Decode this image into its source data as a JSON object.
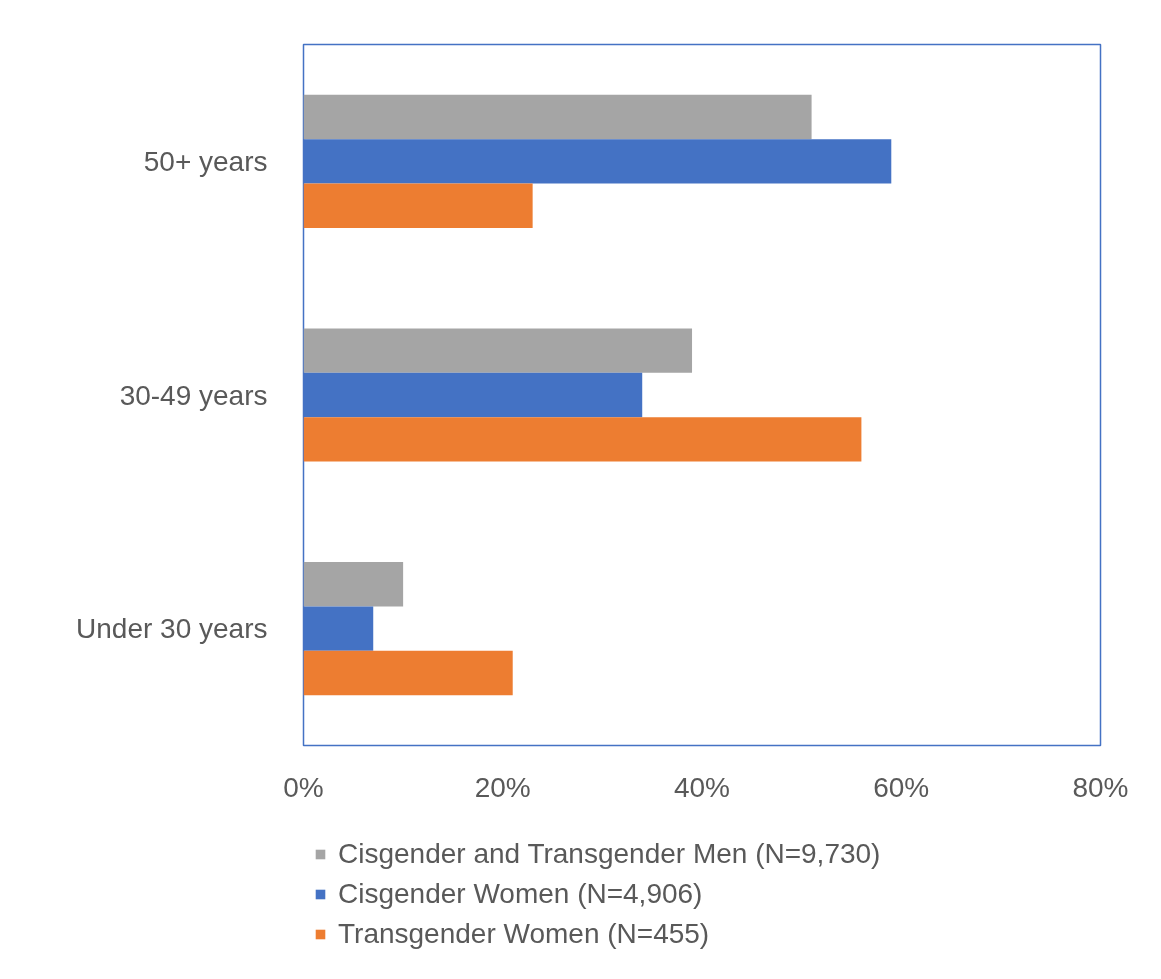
{
  "chart_data": {
    "type": "bar",
    "orientation": "horizontal",
    "categories": [
      "50+ years",
      "30-49 years",
      "Under 30 years"
    ],
    "series": [
      {
        "name": "Cisgender and Transgender Men (N=9,730)",
        "color": "#a5a5a5",
        "values": [
          51,
          39,
          10
        ]
      },
      {
        "name": "Cisgender Women (N=4,906)",
        "color": "#4472c4",
        "values": [
          59,
          34,
          7
        ]
      },
      {
        "name": "Transgender Women (N=455)",
        "color": "#ed7d31",
        "values": [
          23,
          56,
          21
        ]
      }
    ],
    "xlim": [
      0,
      80
    ],
    "xticks": [
      {
        "value": 0,
        "label": "0%"
      },
      {
        "value": 20,
        "label": "20%"
      },
      {
        "value": 40,
        "label": "40%"
      },
      {
        "value": 60,
        "label": "60%"
      },
      {
        "value": 80,
        "label": "80%"
      }
    ],
    "grid": false,
    "legend": "bottom"
  }
}
